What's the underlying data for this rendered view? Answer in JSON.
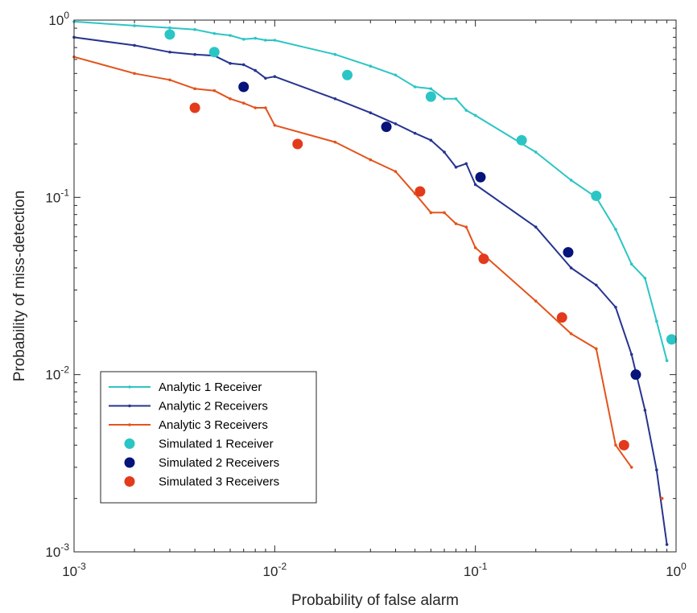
{
  "chart_data": {
    "type": "line",
    "title": "",
    "xlabel": "Probability of false alarm",
    "ylabel": "Probability of miss-detection",
    "xscale": "log",
    "yscale": "log",
    "xlim": [
      0.001,
      1
    ],
    "ylim": [
      0.001,
      1
    ],
    "x_ticks": [
      {
        "base": "10",
        "exp": "-3"
      },
      {
        "base": "10",
        "exp": "-2"
      },
      {
        "base": "10",
        "exp": "-1"
      },
      {
        "base": "10",
        "exp": "0"
      }
    ],
    "y_ticks": [
      {
        "base": "10",
        "exp": "-3"
      },
      {
        "base": "10",
        "exp": "-2"
      },
      {
        "base": "10",
        "exp": "-1"
      },
      {
        "base": "10",
        "exp": "0"
      }
    ],
    "legend_position": "bottom-left",
    "series": [
      {
        "name": "Analytic 1 Receiver",
        "kind": "line",
        "color": "#2cc5c5",
        "points": [
          [
            0.001,
            0.98
          ],
          [
            0.002,
            0.93
          ],
          [
            0.003,
            0.905
          ],
          [
            0.004,
            0.885
          ],
          [
            0.005,
            0.84
          ],
          [
            0.006,
            0.82
          ],
          [
            0.007,
            0.78
          ],
          [
            0.008,
            0.79
          ],
          [
            0.009,
            0.77
          ],
          [
            0.01,
            0.77
          ],
          [
            0.02,
            0.64
          ],
          [
            0.03,
            0.55
          ],
          [
            0.04,
            0.49
          ],
          [
            0.05,
            0.42
          ],
          [
            0.06,
            0.41
          ],
          [
            0.07,
            0.36
          ],
          [
            0.08,
            0.36
          ],
          [
            0.09,
            0.31
          ],
          [
            0.1,
            0.29
          ],
          [
            0.2,
            0.18
          ],
          [
            0.3,
            0.125
          ],
          [
            0.4,
            0.1
          ],
          [
            0.5,
            0.066
          ],
          [
            0.6,
            0.042
          ],
          [
            0.7,
            0.035
          ],
          [
            0.8,
            0.02
          ],
          [
            0.9,
            0.012
          ]
        ]
      },
      {
        "name": "Analytic 2 Receivers",
        "kind": "line",
        "color": "#27348f",
        "points": [
          [
            0.001,
            0.8
          ],
          [
            0.002,
            0.72
          ],
          [
            0.003,
            0.66
          ],
          [
            0.004,
            0.64
          ],
          [
            0.005,
            0.63
          ],
          [
            0.006,
            0.57
          ],
          [
            0.007,
            0.56
          ],
          [
            0.008,
            0.52
          ],
          [
            0.009,
            0.47
          ],
          [
            0.01,
            0.48
          ],
          [
            0.02,
            0.36
          ],
          [
            0.03,
            0.3
          ],
          [
            0.04,
            0.26
          ],
          [
            0.05,
            0.23
          ],
          [
            0.06,
            0.21
          ],
          [
            0.07,
            0.18
          ],
          [
            0.08,
            0.148
          ],
          [
            0.09,
            0.155
          ],
          [
            0.1,
            0.118
          ],
          [
            0.2,
            0.068
          ],
          [
            0.3,
            0.04
          ],
          [
            0.4,
            0.032
          ],
          [
            0.5,
            0.024
          ],
          [
            0.6,
            0.013
          ],
          [
            0.7,
            0.0063
          ],
          [
            0.8,
            0.0029
          ],
          [
            0.9,
            0.0011
          ]
        ]
      },
      {
        "name": "Analytic 3 Receivers",
        "kind": "line",
        "color": "#e3531c",
        "points": [
          [
            0.001,
            0.62
          ],
          [
            0.002,
            0.5
          ],
          [
            0.003,
            0.46
          ],
          [
            0.004,
            0.41
          ],
          [
            0.005,
            0.4
          ],
          [
            0.006,
            0.36
          ],
          [
            0.007,
            0.34
          ],
          [
            0.008,
            0.32
          ],
          [
            0.009,
            0.32
          ],
          [
            0.01,
            0.255
          ],
          [
            0.02,
            0.205
          ],
          [
            0.03,
            0.163
          ],
          [
            0.04,
            0.14
          ],
          [
            0.05,
            0.105
          ],
          [
            0.06,
            0.082
          ],
          [
            0.07,
            0.082
          ],
          [
            0.08,
            0.071
          ],
          [
            0.09,
            0.068
          ],
          [
            0.1,
            0.052
          ],
          [
            0.2,
            0.026
          ],
          [
            0.3,
            0.017
          ],
          [
            0.4,
            0.014
          ],
          [
            0.5,
            0.004
          ],
          [
            0.6,
            0.003
          ]
        ]
      },
      {
        "name": "Simulated 1 Receiver",
        "kind": "markers",
        "color": "#2cc5c5",
        "points": [
          [
            0.003,
            0.83
          ],
          [
            0.005,
            0.66
          ],
          [
            0.023,
            0.49
          ],
          [
            0.06,
            0.37
          ],
          [
            0.17,
            0.21
          ],
          [
            0.4,
            0.102
          ],
          [
            0.95,
            0.0158
          ]
        ]
      },
      {
        "name": "Simulated 2 Receivers",
        "kind": "markers",
        "color": "#05137a",
        "points": [
          [
            0.007,
            0.42
          ],
          [
            0.036,
            0.25
          ],
          [
            0.106,
            0.13
          ],
          [
            0.29,
            0.049
          ],
          [
            0.63,
            0.01
          ]
        ]
      },
      {
        "name": "Simulated 3 Receivers",
        "kind": "markers",
        "color": "#e33a1c",
        "points": [
          [
            0.004,
            0.32
          ],
          [
            0.013,
            0.2
          ],
          [
            0.053,
            0.108
          ],
          [
            0.11,
            0.045
          ],
          [
            0.27,
            0.021
          ],
          [
            0.55,
            0.004
          ]
        ]
      }
    ],
    "stray_points": [
      {
        "x": 0.85,
        "y": 0.002,
        "color": "#e3531c"
      }
    ]
  }
}
